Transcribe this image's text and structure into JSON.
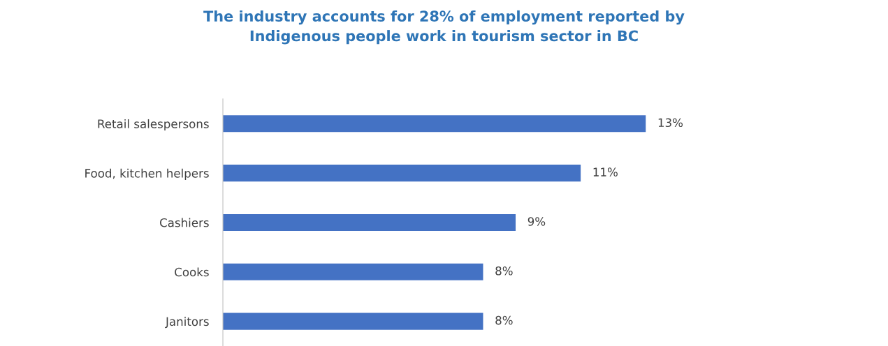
{
  "chart_data": {
    "type": "bar",
    "orientation": "horizontal",
    "title": "The industry accounts for 28% of employment reported by\nIndigenous people work in tourism sector in BC",
    "categories": [
      "Retail salespersons",
      "Food, kitchen helpers",
      "Cashiers",
      "Cooks",
      "Janitors"
    ],
    "values": [
      13,
      11,
      9,
      8,
      8
    ],
    "value_labels": [
      "13%",
      "11%",
      "9%",
      "8%",
      "8%"
    ],
    "color": "#4472c4",
    "tick_labels": "y",
    "grid": false,
    "legend": false
  }
}
